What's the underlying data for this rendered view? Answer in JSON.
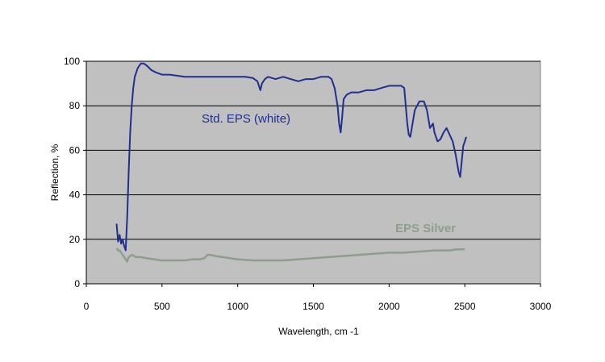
{
  "chart_data": {
    "type": "line",
    "title": "",
    "xlabel": "Wavelength, cm -1",
    "ylabel": "Reflection, %",
    "xlim": [
      0,
      3000
    ],
    "ylim": [
      0,
      100
    ],
    "x_ticks": [
      "0",
      "500",
      "1000",
      "1500",
      "2000",
      "2500",
      "3000"
    ],
    "y_ticks": [
      "0",
      "20",
      "40",
      "60",
      "80",
      "100"
    ],
    "grid": "horizontal",
    "plot_background": "#c0c0c0",
    "series": [
      {
        "name": "Std. EPS (white)",
        "color": "#1f2f8f",
        "x": [
          200,
          210,
          220,
          230,
          240,
          250,
          260,
          270,
          280,
          290,
          300,
          310,
          320,
          340,
          360,
          380,
          400,
          430,
          460,
          500,
          550,
          600,
          650,
          700,
          750,
          800,
          850,
          900,
          950,
          1000,
          1050,
          1100,
          1130,
          1150,
          1160,
          1180,
          1200,
          1250,
          1300,
          1350,
          1400,
          1450,
          1500,
          1550,
          1600,
          1620,
          1640,
          1660,
          1670,
          1680,
          1690,
          1700,
          1720,
          1750,
          1800,
          1850,
          1900,
          1950,
          2000,
          2050,
          2080,
          2100,
          2110,
          2120,
          2130,
          2140,
          2150,
          2170,
          2200,
          2230,
          2250,
          2270,
          2290,
          2300,
          2320,
          2340,
          2360,
          2380,
          2400,
          2420,
          2440,
          2460,
          2470,
          2480,
          2490,
          2500,
          2510
        ],
        "y": [
          27,
          19,
          22,
          18,
          20,
          17,
          15,
          30,
          50,
          68,
          80,
          88,
          93,
          97,
          99,
          99,
          98,
          96,
          95,
          94,
          94,
          93.5,
          93,
          93,
          93,
          93,
          93,
          93,
          93,
          93,
          93,
          92.5,
          91,
          87,
          90,
          92,
          93,
          92,
          93,
          92,
          91,
          92,
          92,
          93,
          93,
          92,
          88,
          80,
          72,
          68,
          75,
          83,
          85,
          86,
          86,
          87,
          87,
          88,
          89,
          89,
          89,
          88,
          80,
          72,
          67,
          66,
          70,
          78,
          82,
          82,
          78,
          70,
          72,
          68,
          64,
          65,
          68,
          70,
          67,
          64,
          58,
          50,
          48,
          55,
          62,
          64,
          66
        ]
      },
      {
        "name": "EPS Silver",
        "color": "#8e9e8e",
        "x": [
          200,
          210,
          220,
          230,
          240,
          250,
          260,
          270,
          280,
          300,
          330,
          360,
          400,
          450,
          500,
          550,
          600,
          650,
          700,
          750,
          780,
          800,
          820,
          850,
          900,
          950,
          1000,
          1100,
          1200,
          1300,
          1400,
          1500,
          1600,
          1700,
          1800,
          1900,
          2000,
          2100,
          2200,
          2300,
          2400,
          2450,
          2500
        ],
        "y": [
          16,
          15,
          15,
          14,
          13,
          12,
          11,
          10,
          12,
          13,
          12,
          12,
          11.5,
          11,
          10.5,
          10.5,
          10.5,
          10.5,
          11,
          11,
          11.5,
          13,
          13,
          12.5,
          12,
          11.5,
          11,
          10.5,
          10.5,
          10.5,
          11,
          11.5,
          12,
          12.5,
          13,
          13.5,
          14,
          14,
          14.5,
          15,
          15,
          15.5,
          15.5
        ]
      }
    ]
  }
}
